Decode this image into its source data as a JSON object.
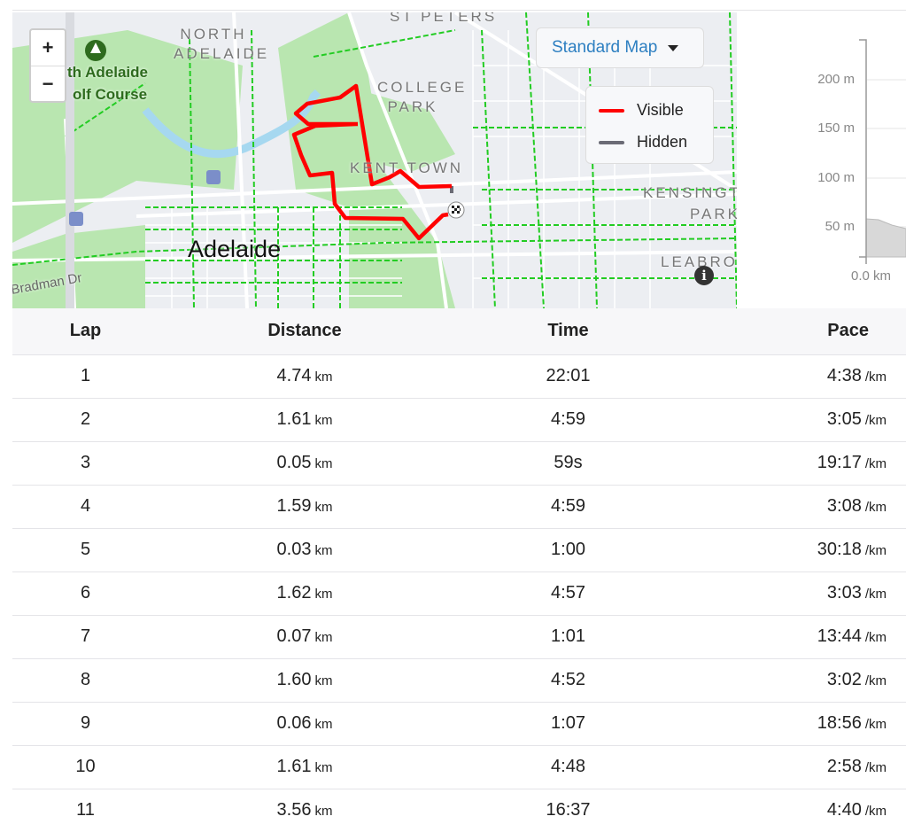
{
  "map": {
    "zoom_in": "+",
    "zoom_out": "−",
    "labels": {
      "north_adelaide": "NORTH ADELAIDE",
      "golf": "th Adelaide",
      "golf2": "olf Course",
      "st_peters": "ST PETERS",
      "college_park": "COLLEGE PARK",
      "kent_town": "KENT TOWN",
      "kensington_park": "KENSINGTON PARK",
      "leabrook": "LEABROO",
      "adelaide": "Adelaide",
      "bradman": "Bradman Dr"
    },
    "map_type": "Standard Map",
    "legend": [
      {
        "label": "Visible",
        "color": "#ff0000"
      },
      {
        "label": "Hidden",
        "color": "#6b6b75"
      }
    ],
    "info": "i",
    "route_color": "#ff0000"
  },
  "elevation": {
    "y_ticks": [
      "200 m",
      "150 m",
      "100 m",
      "50 m"
    ],
    "x_tick": "0.0 km",
    "y_values": [
      200,
      150,
      100,
      50
    ],
    "start_elevation_m": 48
  },
  "table": {
    "headers": [
      "Lap",
      "Distance",
      "Time",
      "Pace"
    ],
    "dist_unit": "km",
    "pace_unit": "/km",
    "rows": [
      {
        "lap": "1",
        "distance": "4.74",
        "time": "22:01",
        "pace": "4:38"
      },
      {
        "lap": "2",
        "distance": "1.61",
        "time": "4:59",
        "pace": "3:05"
      },
      {
        "lap": "3",
        "distance": "0.05",
        "time": "59s",
        "pace": "19:17"
      },
      {
        "lap": "4",
        "distance": "1.59",
        "time": "4:59",
        "pace": "3:08"
      },
      {
        "lap": "5",
        "distance": "0.03",
        "time": "1:00",
        "pace": "30:18"
      },
      {
        "lap": "6",
        "distance": "1.62",
        "time": "4:57",
        "pace": "3:03"
      },
      {
        "lap": "7",
        "distance": "0.07",
        "time": "1:01",
        "pace": "13:44"
      },
      {
        "lap": "8",
        "distance": "1.60",
        "time": "4:52",
        "pace": "3:02"
      },
      {
        "lap": "9",
        "distance": "0.06",
        "time": "1:07",
        "pace": "18:56"
      },
      {
        "lap": "10",
        "distance": "1.61",
        "time": "4:48",
        "pace": "2:58"
      },
      {
        "lap": "11",
        "distance": "3.56",
        "time": "16:37",
        "pace": "4:40"
      }
    ]
  }
}
